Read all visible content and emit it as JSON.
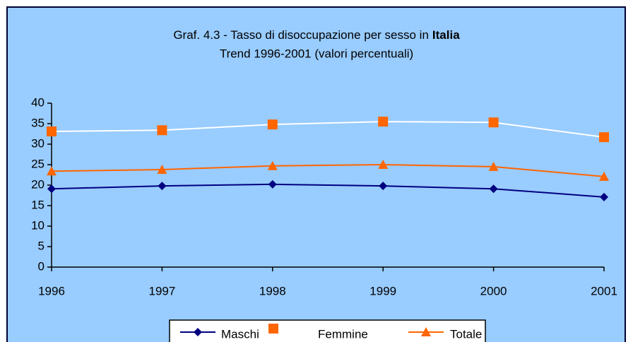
{
  "chart_data": {
    "type": "line",
    "title": "Graf. 4.3 - Tasso di disoccupazione per sesso in",
    "title_bold": "Italia",
    "subtitle": "Trend 1996-2001 (valori percentuali)",
    "categories": [
      "1996",
      "1997",
      "1998",
      "1999",
      "2000",
      "2001"
    ],
    "series": [
      {
        "name": "Maschi",
        "color": "#000080",
        "line_color": "#000080",
        "marker": "diamond",
        "values": [
          19.1,
          19.8,
          20.2,
          19.8,
          19.1,
          17.1
        ]
      },
      {
        "name": "Femmine",
        "color": "#ff6600",
        "line_color": "#ffffff",
        "marker": "square",
        "values": [
          33.1,
          33.4,
          34.8,
          35.5,
          35.3,
          31.7
        ]
      },
      {
        "name": "Totale",
        "color": "#ff6600",
        "line_color": "#ff6600",
        "marker": "triangle",
        "values": [
          23.4,
          23.8,
          24.7,
          25.0,
          24.5,
          22.1
        ]
      }
    ],
    "ylim": [
      0,
      40
    ],
    "yticks": [
      0,
      5,
      10,
      15,
      20,
      25,
      30,
      35,
      40
    ],
    "background": "#99ccff",
    "legend": "bottom"
  }
}
